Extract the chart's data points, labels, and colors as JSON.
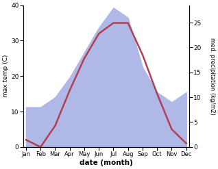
{
  "months": [
    "Jan",
    "Feb",
    "Mar",
    "Apr",
    "May",
    "Jun",
    "Jul",
    "Aug",
    "Sep",
    "Oct",
    "Nov",
    "Dec"
  ],
  "temp": [
    2,
    0,
    6,
    16,
    25,
    32,
    35,
    35,
    26,
    15,
    5,
    1
  ],
  "precip": [
    8,
    8,
    10,
    14,
    19,
    24,
    28,
    26,
    16,
    11,
    9,
    11
  ],
  "temp_color": "#b04050",
  "precip_fill_color": "#b0b8e8",
  "temp_ylim": [
    0,
    40
  ],
  "precip_ylim": [
    0,
    28.5
  ],
  "precip_yticks": [
    0,
    5,
    10,
    15,
    20,
    25
  ],
  "temp_yticks": [
    0,
    10,
    20,
    30,
    40
  ],
  "xlabel": "date (month)",
  "ylabel_left": "max temp (C)",
  "ylabel_right": "med. precipitation (kg/m2)",
  "line_width": 1.8,
  "figsize": [
    3.18,
    2.47
  ],
  "dpi": 100
}
